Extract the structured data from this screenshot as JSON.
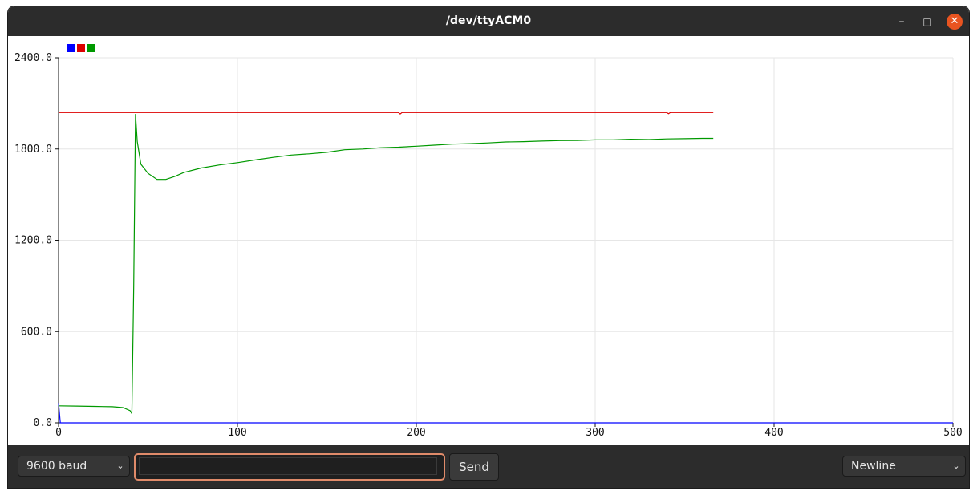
{
  "window": {
    "title": "/dev/ttyACM0",
    "controls": {
      "minimize": "–",
      "maximize": "□",
      "close": "✕"
    }
  },
  "toolbar": {
    "baud_label": "9600 baud",
    "input_value": "",
    "send_label": "Send",
    "line_ending": "Newline",
    "dropdown_icon": "chevron-down-icon"
  },
  "colors": {
    "titlebar": "#2c2c2c",
    "close_button": "#e95420",
    "series_blue": "#0000ff",
    "series_red": "#dd0000",
    "series_green": "#009900",
    "input_focus": "#e08b6a"
  },
  "chart_data": {
    "type": "line",
    "xlim": [
      0,
      500
    ],
    "ylim": [
      0,
      2400
    ],
    "x_ticks": [
      "0",
      "100",
      "200",
      "300",
      "400",
      "500"
    ],
    "y_ticks": [
      "0.0",
      "600.0",
      "1200.0",
      "1800.0",
      "2400.0"
    ],
    "grid": true,
    "legend": "top-left",
    "series": [
      {
        "color": "#0000ff",
        "x": [
          0,
          1,
          2,
          500
        ],
        "y": [
          130,
          0,
          0,
          0
        ]
      },
      {
        "color": "#dd0000",
        "x": [
          0,
          100,
          190,
          191,
          192,
          300,
          340,
          341,
          342,
          366
        ],
        "y": [
          2040,
          2040,
          2040,
          2030,
          2040,
          2040,
          2040,
          2032,
          2040,
          2040
        ]
      },
      {
        "color": "#009900",
        "x": [
          0,
          10,
          20,
          30,
          36,
          40,
          41,
          42,
          43,
          44,
          46,
          50,
          55,
          60,
          65,
          70,
          80,
          90,
          100,
          110,
          120,
          130,
          140,
          150,
          160,
          170,
          180,
          190,
          200,
          210,
          220,
          230,
          240,
          250,
          260,
          270,
          280,
          290,
          300,
          310,
          320,
          330,
          340,
          350,
          360,
          366
        ],
        "y": [
          112,
          110,
          108,
          106,
          100,
          80,
          60,
          900,
          2030,
          1850,
          1700,
          1640,
          1600,
          1600,
          1620,
          1645,
          1675,
          1695,
          1710,
          1728,
          1745,
          1760,
          1768,
          1778,
          1795,
          1800,
          1808,
          1812,
          1818,
          1825,
          1832,
          1835,
          1840,
          1846,
          1848,
          1852,
          1855,
          1856,
          1860,
          1860,
          1864,
          1862,
          1866,
          1868,
          1870,
          1870
        ]
      }
    ]
  }
}
